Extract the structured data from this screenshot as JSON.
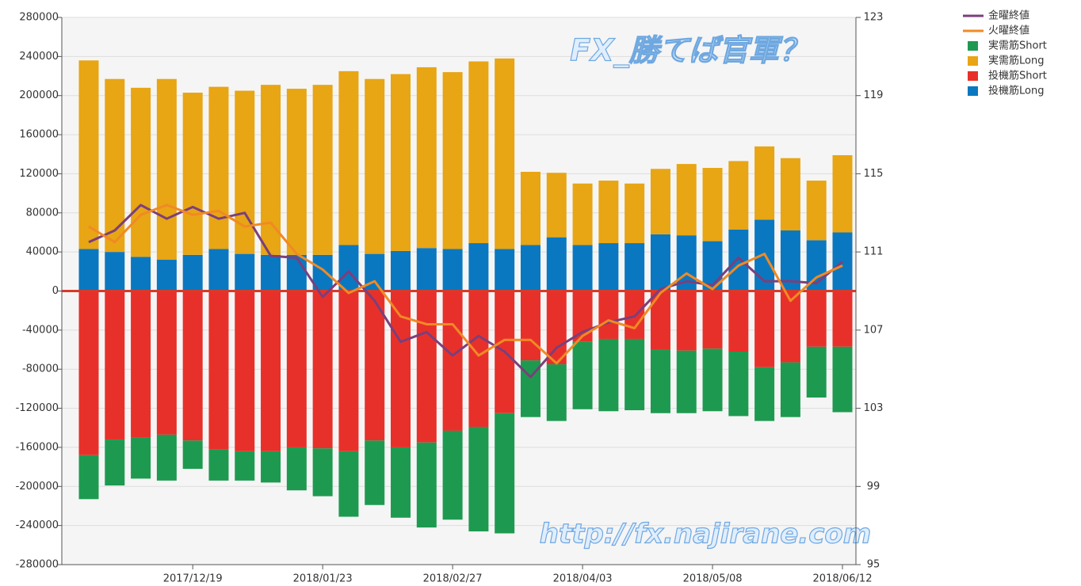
{
  "chart_data": {
    "type": "bar",
    "annotations": [
      "FX_勝てば官軍？",
      "http://fx.najirane.com"
    ],
    "categories": [
      null,
      null,
      null,
      null,
      "2017/12/19",
      null,
      null,
      null,
      null,
      "2018/01/23",
      null,
      null,
      null,
      null,
      "2018/02/27",
      null,
      null,
      null,
      null,
      "2018/04/03",
      null,
      null,
      null,
      null,
      "2018/05/08",
      null,
      null,
      null,
      null,
      "2018/06/12"
    ],
    "series": [
      {
        "name": "金曜終値",
        "type": "line",
        "axis": "y2",
        "color": "#7b3f7b",
        "values": [
          111.5,
          112.1,
          113.4,
          112.7,
          113.3,
          112.7,
          113.0,
          110.8,
          110.7,
          108.7,
          110.0,
          108.5,
          106.4,
          106.9,
          105.7,
          106.7,
          105.9,
          104.6,
          106.1,
          106.9,
          107.4,
          107.7,
          109.1,
          109.5,
          109.3,
          110.7,
          109.5,
          109.5,
          109.4,
          110.5
        ]
      },
      {
        "name": "火曜終値",
        "type": "line",
        "axis": "y2",
        "color": "#f08a24",
        "values": [
          112.3,
          111.5,
          112.9,
          113.4,
          112.9,
          113.1,
          112.3,
          112.5,
          110.9,
          110.1,
          108.9,
          109.5,
          107.7,
          107.3,
          107.3,
          105.7,
          106.5,
          106.5,
          105.3,
          106.7,
          107.5,
          107.1,
          108.9,
          109.9,
          109.1,
          110.3,
          110.9,
          108.5,
          109.7,
          110.3
        ]
      },
      {
        "name": "実需筋Short",
        "type": "bar",
        "color": "#1e9a50",
        "values": [
          -45000,
          -47000,
          -42000,
          -47000,
          -29000,
          -32000,
          -30000,
          -32000,
          -44000,
          -49000,
          -67000,
          -66000,
          -72000,
          -87000,
          -91000,
          -107000,
          -123000,
          -58000,
          -58000,
          -69000,
          -74000,
          -73000,
          -65000,
          -64000,
          -64000,
          -66000,
          -55000,
          -56000,
          -52000,
          -67000
        ]
      },
      {
        "name": "実需筋Long",
        "type": "bar",
        "color": "#e8a514",
        "values": [
          193000,
          177000,
          173000,
          185000,
          166000,
          166000,
          167000,
          174000,
          170000,
          174000,
          178000,
          179000,
          181000,
          185000,
          181000,
          186000,
          195000,
          75000,
          66000,
          63000,
          64000,
          61000,
          67000,
          73000,
          75000,
          70000,
          75000,
          74000,
          61000,
          79000
        ]
      },
      {
        "name": "投機筋Short",
        "type": "bar",
        "color": "#e8302a",
        "values": [
          -168000,
          -152000,
          -150000,
          -147000,
          -153000,
          -162000,
          -164000,
          -164000,
          -160000,
          -161000,
          -164000,
          -153000,
          -160000,
          -155000,
          -143000,
          -139000,
          -125000,
          -71000,
          -75000,
          -52000,
          -49000,
          -49000,
          -60000,
          -61000,
          -59000,
          -62000,
          -78000,
          -73000,
          -57000,
          -57000
        ]
      },
      {
        "name": "投機筋Long",
        "type": "bar",
        "color": "#0a78c0",
        "values": [
          43000,
          40000,
          35000,
          32000,
          37000,
          43000,
          38000,
          37000,
          37000,
          37000,
          47000,
          38000,
          41000,
          44000,
          43000,
          49000,
          43000,
          47000,
          55000,
          47000,
          49000,
          49000,
          58000,
          57000,
          51000,
          63000,
          73000,
          62000,
          52000,
          60000
        ]
      }
    ],
    "ylim": [
      -280000,
      280000
    ],
    "yticks": [
      -280000,
      -240000,
      -200000,
      -160000,
      -120000,
      -80000,
      -40000,
      0,
      40000,
      80000,
      120000,
      160000,
      200000,
      240000,
      280000
    ],
    "y2lim": [
      95,
      123
    ],
    "y2ticks": [
      95,
      99,
      103,
      107,
      111,
      115,
      119,
      123
    ],
    "grid": true,
    "legend": "top-right"
  }
}
